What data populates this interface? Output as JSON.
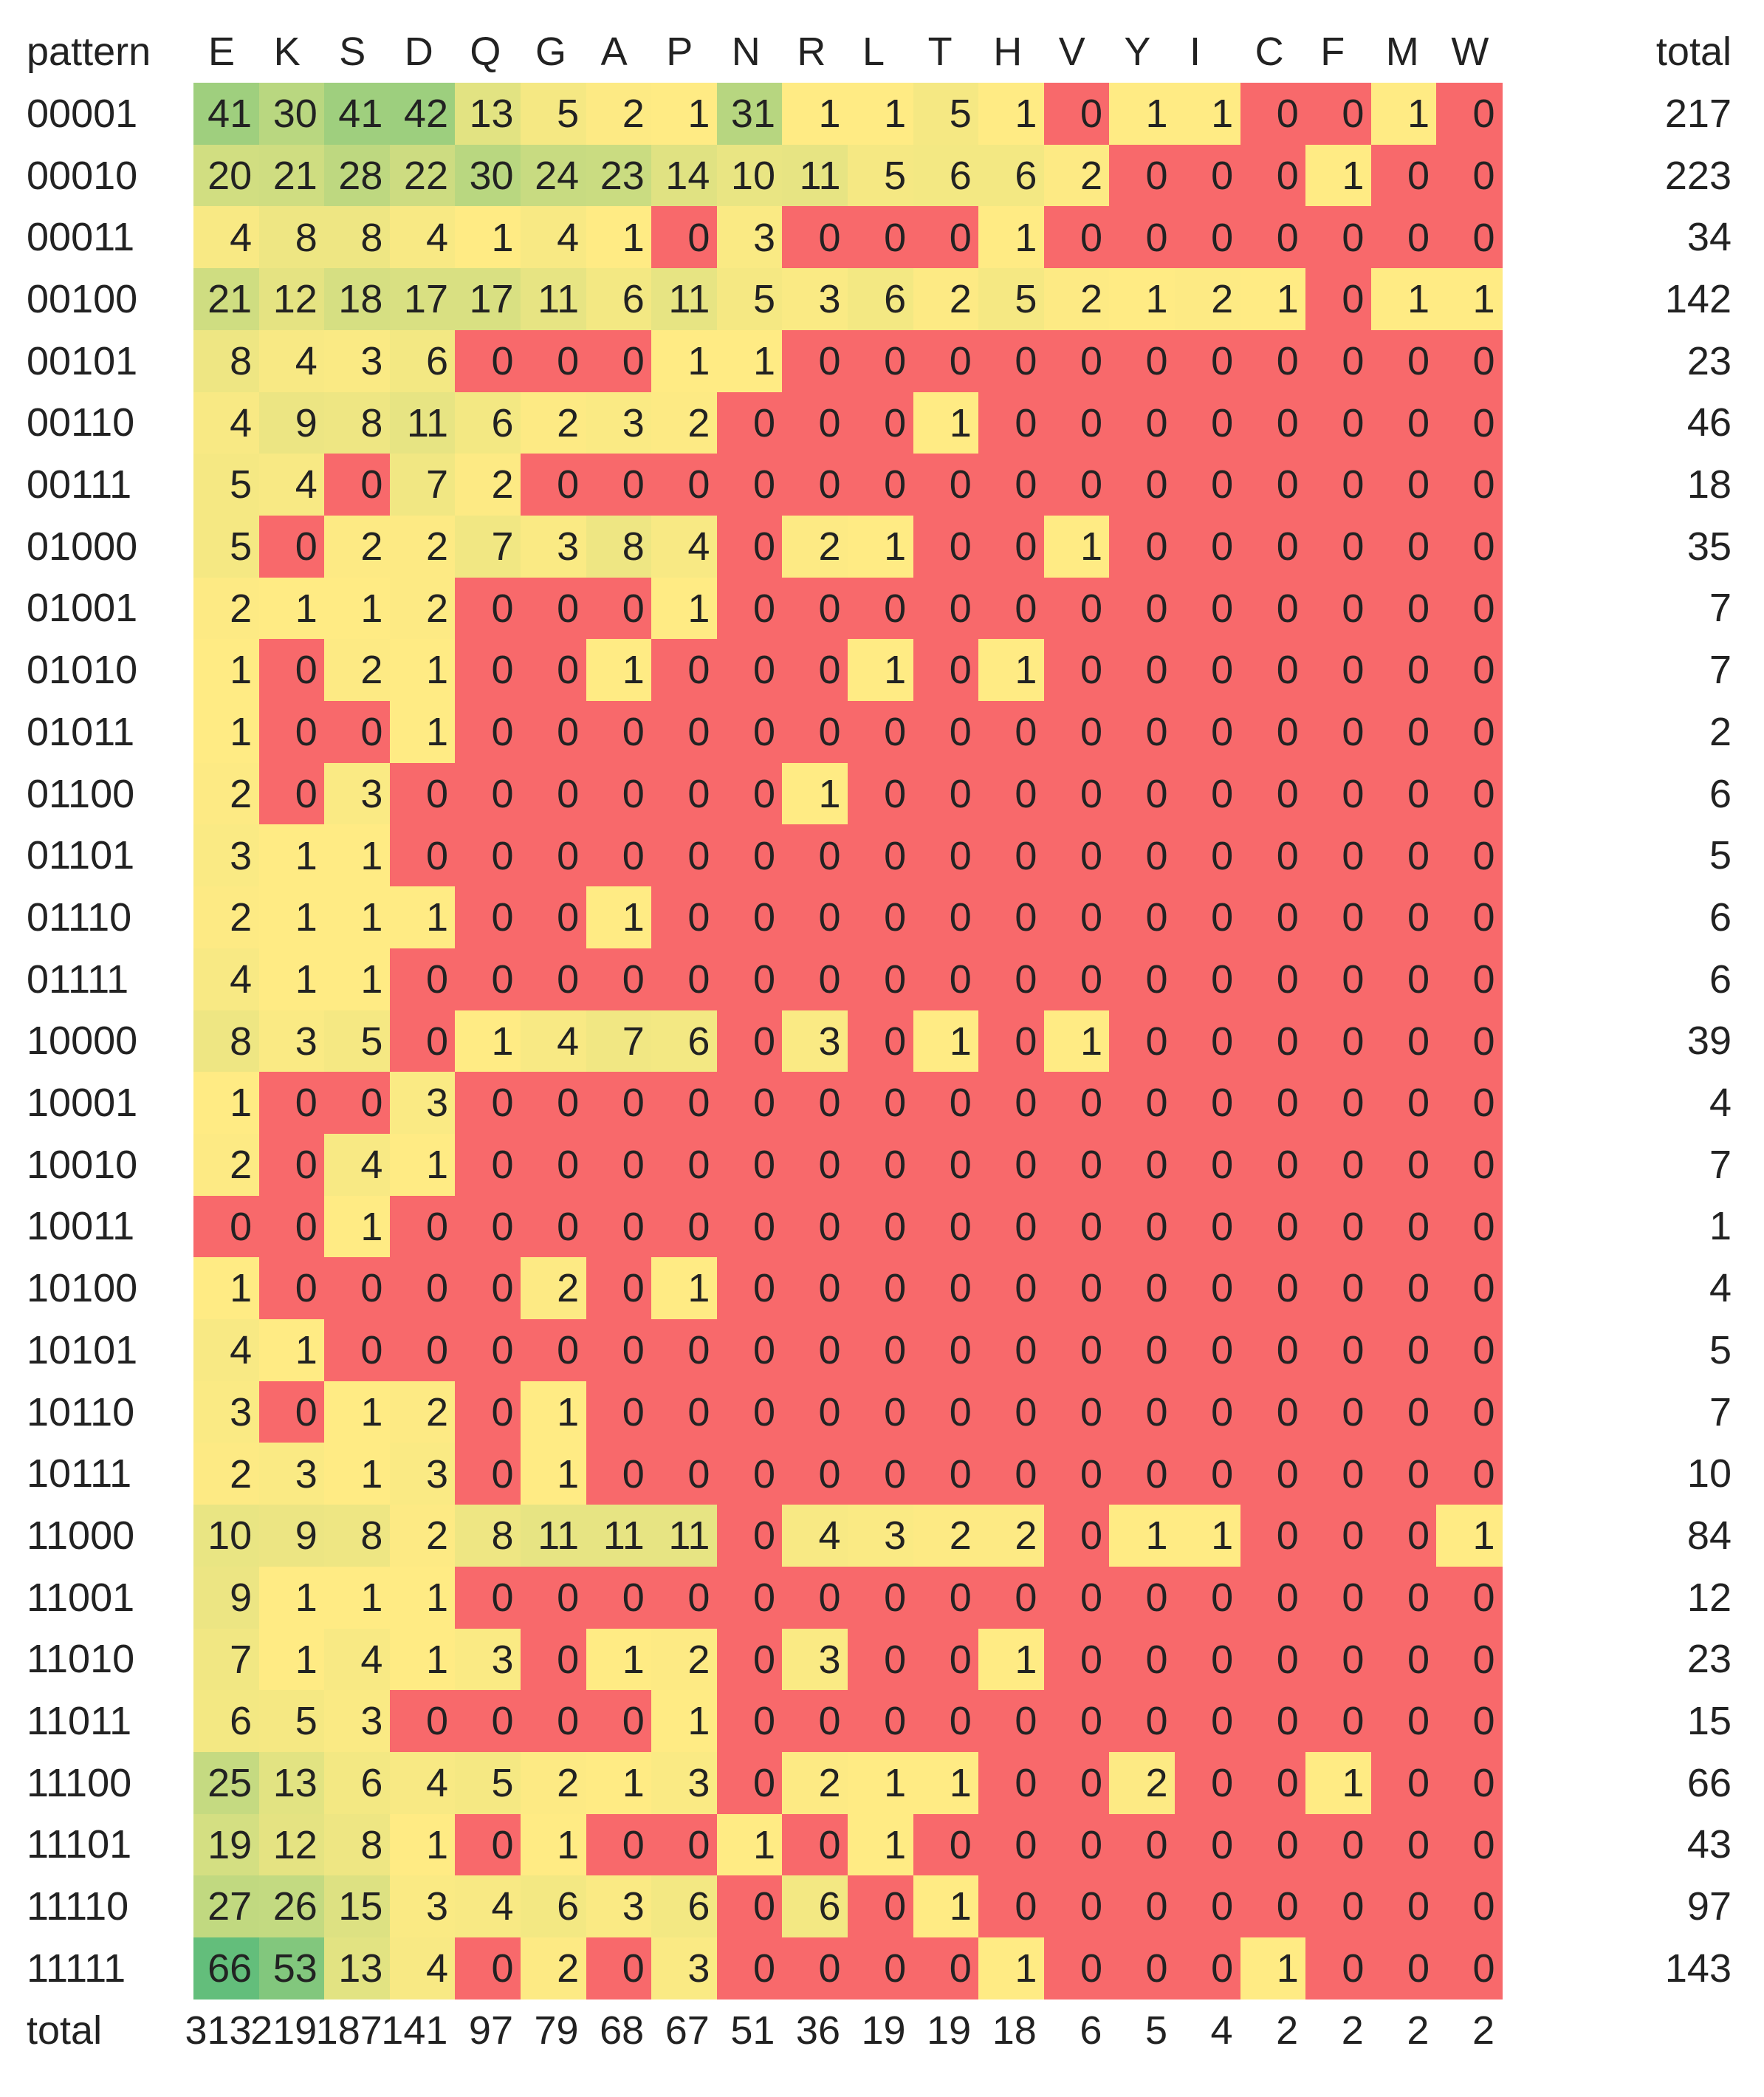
{
  "chart_data": {
    "type": "heatmap",
    "corner_label": "pattern",
    "columns": [
      "E",
      "K",
      "S",
      "D",
      "Q",
      "G",
      "A",
      "P",
      "N",
      "R",
      "L",
      "T",
      "H",
      "V",
      "Y",
      "I",
      "C",
      "F",
      "M",
      "W"
    ],
    "total_label": "total",
    "rows": [
      "00001",
      "00010",
      "00011",
      "00100",
      "00101",
      "00110",
      "00111",
      "01000",
      "01001",
      "01010",
      "01011",
      "01100",
      "01101",
      "01110",
      "01111",
      "10000",
      "10001",
      "10010",
      "10011",
      "10100",
      "10101",
      "10110",
      "10111",
      "11000",
      "11001",
      "11010",
      "11011",
      "11100",
      "11101",
      "11110",
      "11111"
    ],
    "values": [
      [
        41,
        30,
        41,
        42,
        13,
        5,
        2,
        1,
        31,
        1,
        1,
        5,
        1,
        0,
        1,
        1,
        0,
        0,
        1,
        0
      ],
      [
        20,
        21,
        28,
        22,
        30,
        24,
        23,
        14,
        10,
        11,
        5,
        6,
        6,
        2,
        0,
        0,
        0,
        1,
        0,
        0
      ],
      [
        4,
        8,
        8,
        4,
        1,
        4,
        1,
        0,
        3,
        0,
        0,
        0,
        1,
        0,
        0,
        0,
        0,
        0,
        0,
        0
      ],
      [
        21,
        12,
        18,
        17,
        17,
        11,
        6,
        11,
        5,
        3,
        6,
        2,
        5,
        2,
        1,
        2,
        1,
        0,
        1,
        1
      ],
      [
        8,
        4,
        3,
        6,
        0,
        0,
        0,
        1,
        1,
        0,
        0,
        0,
        0,
        0,
        0,
        0,
        0,
        0,
        0,
        0
      ],
      [
        4,
        9,
        8,
        11,
        6,
        2,
        3,
        2,
        0,
        0,
        0,
        1,
        0,
        0,
        0,
        0,
        0,
        0,
        0,
        0
      ],
      [
        5,
        4,
        0,
        7,
        2,
        0,
        0,
        0,
        0,
        0,
        0,
        0,
        0,
        0,
        0,
        0,
        0,
        0,
        0,
        0
      ],
      [
        5,
        0,
        2,
        2,
        7,
        3,
        8,
        4,
        0,
        2,
        1,
        0,
        0,
        1,
        0,
        0,
        0,
        0,
        0,
        0
      ],
      [
        2,
        1,
        1,
        2,
        0,
        0,
        0,
        1,
        0,
        0,
        0,
        0,
        0,
        0,
        0,
        0,
        0,
        0,
        0,
        0
      ],
      [
        1,
        0,
        2,
        1,
        0,
        0,
        1,
        0,
        0,
        0,
        1,
        0,
        1,
        0,
        0,
        0,
        0,
        0,
        0,
        0
      ],
      [
        1,
        0,
        0,
        1,
        0,
        0,
        0,
        0,
        0,
        0,
        0,
        0,
        0,
        0,
        0,
        0,
        0,
        0,
        0,
        0
      ],
      [
        2,
        0,
        3,
        0,
        0,
        0,
        0,
        0,
        0,
        1,
        0,
        0,
        0,
        0,
        0,
        0,
        0,
        0,
        0,
        0
      ],
      [
        3,
        1,
        1,
        0,
        0,
        0,
        0,
        0,
        0,
        0,
        0,
        0,
        0,
        0,
        0,
        0,
        0,
        0,
        0,
        0
      ],
      [
        2,
        1,
        1,
        1,
        0,
        0,
        1,
        0,
        0,
        0,
        0,
        0,
        0,
        0,
        0,
        0,
        0,
        0,
        0,
        0
      ],
      [
        4,
        1,
        1,
        0,
        0,
        0,
        0,
        0,
        0,
        0,
        0,
        0,
        0,
        0,
        0,
        0,
        0,
        0,
        0,
        0
      ],
      [
        8,
        3,
        5,
        0,
        1,
        4,
        7,
        6,
        0,
        3,
        0,
        1,
        0,
        1,
        0,
        0,
        0,
        0,
        0,
        0
      ],
      [
        1,
        0,
        0,
        3,
        0,
        0,
        0,
        0,
        0,
        0,
        0,
        0,
        0,
        0,
        0,
        0,
        0,
        0,
        0,
        0
      ],
      [
        2,
        0,
        4,
        1,
        0,
        0,
        0,
        0,
        0,
        0,
        0,
        0,
        0,
        0,
        0,
        0,
        0,
        0,
        0,
        0
      ],
      [
        0,
        0,
        1,
        0,
        0,
        0,
        0,
        0,
        0,
        0,
        0,
        0,
        0,
        0,
        0,
        0,
        0,
        0,
        0,
        0
      ],
      [
        1,
        0,
        0,
        0,
        0,
        2,
        0,
        1,
        0,
        0,
        0,
        0,
        0,
        0,
        0,
        0,
        0,
        0,
        0,
        0
      ],
      [
        4,
        1,
        0,
        0,
        0,
        0,
        0,
        0,
        0,
        0,
        0,
        0,
        0,
        0,
        0,
        0,
        0,
        0,
        0,
        0
      ],
      [
        3,
        0,
        1,
        2,
        0,
        1,
        0,
        0,
        0,
        0,
        0,
        0,
        0,
        0,
        0,
        0,
        0,
        0,
        0,
        0
      ],
      [
        2,
        3,
        1,
        3,
        0,
        1,
        0,
        0,
        0,
        0,
        0,
        0,
        0,
        0,
        0,
        0,
        0,
        0,
        0,
        0
      ],
      [
        10,
        9,
        8,
        2,
        8,
        11,
        11,
        11,
        0,
        4,
        3,
        2,
        2,
        0,
        1,
        1,
        0,
        0,
        0,
        1
      ],
      [
        9,
        1,
        1,
        1,
        0,
        0,
        0,
        0,
        0,
        0,
        0,
        0,
        0,
        0,
        0,
        0,
        0,
        0,
        0,
        0
      ],
      [
        7,
        1,
        4,
        1,
        3,
        0,
        1,
        2,
        0,
        3,
        0,
        0,
        1,
        0,
        0,
        0,
        0,
        0,
        0,
        0
      ],
      [
        6,
        5,
        3,
        0,
        0,
        0,
        0,
        1,
        0,
        0,
        0,
        0,
        0,
        0,
        0,
        0,
        0,
        0,
        0,
        0
      ],
      [
        25,
        13,
        6,
        4,
        5,
        2,
        1,
        3,
        0,
        2,
        1,
        1,
        0,
        0,
        2,
        0,
        0,
        1,
        0,
        0
      ],
      [
        19,
        12,
        8,
        1,
        0,
        1,
        0,
        0,
        1,
        0,
        1,
        0,
        0,
        0,
        0,
        0,
        0,
        0,
        0,
        0
      ],
      [
        27,
        26,
        15,
        3,
        4,
        6,
        3,
        6,
        0,
        6,
        0,
        1,
        0,
        0,
        0,
        0,
        0,
        0,
        0,
        0
      ],
      [
        66,
        53,
        13,
        4,
        0,
        2,
        0,
        3,
        0,
        0,
        0,
        0,
        1,
        0,
        0,
        0,
        1,
        0,
        0,
        0
      ]
    ],
    "row_totals": [
      217,
      223,
      34,
      142,
      23,
      46,
      18,
      35,
      7,
      7,
      2,
      6,
      5,
      6,
      6,
      39,
      4,
      7,
      1,
      4,
      5,
      7,
      10,
      84,
      12,
      23,
      15,
      66,
      43,
      97,
      143
    ],
    "column_totals": [
      313,
      219,
      187,
      141,
      97,
      79,
      68,
      67,
      51,
      36,
      19,
      19,
      18,
      6,
      5,
      4,
      2,
      2,
      2,
      2
    ],
    "color_scale": {
      "zero": "#f8696b",
      "low": "#ffeb84",
      "high": "#63be7b",
      "max_value": 66
    }
  }
}
